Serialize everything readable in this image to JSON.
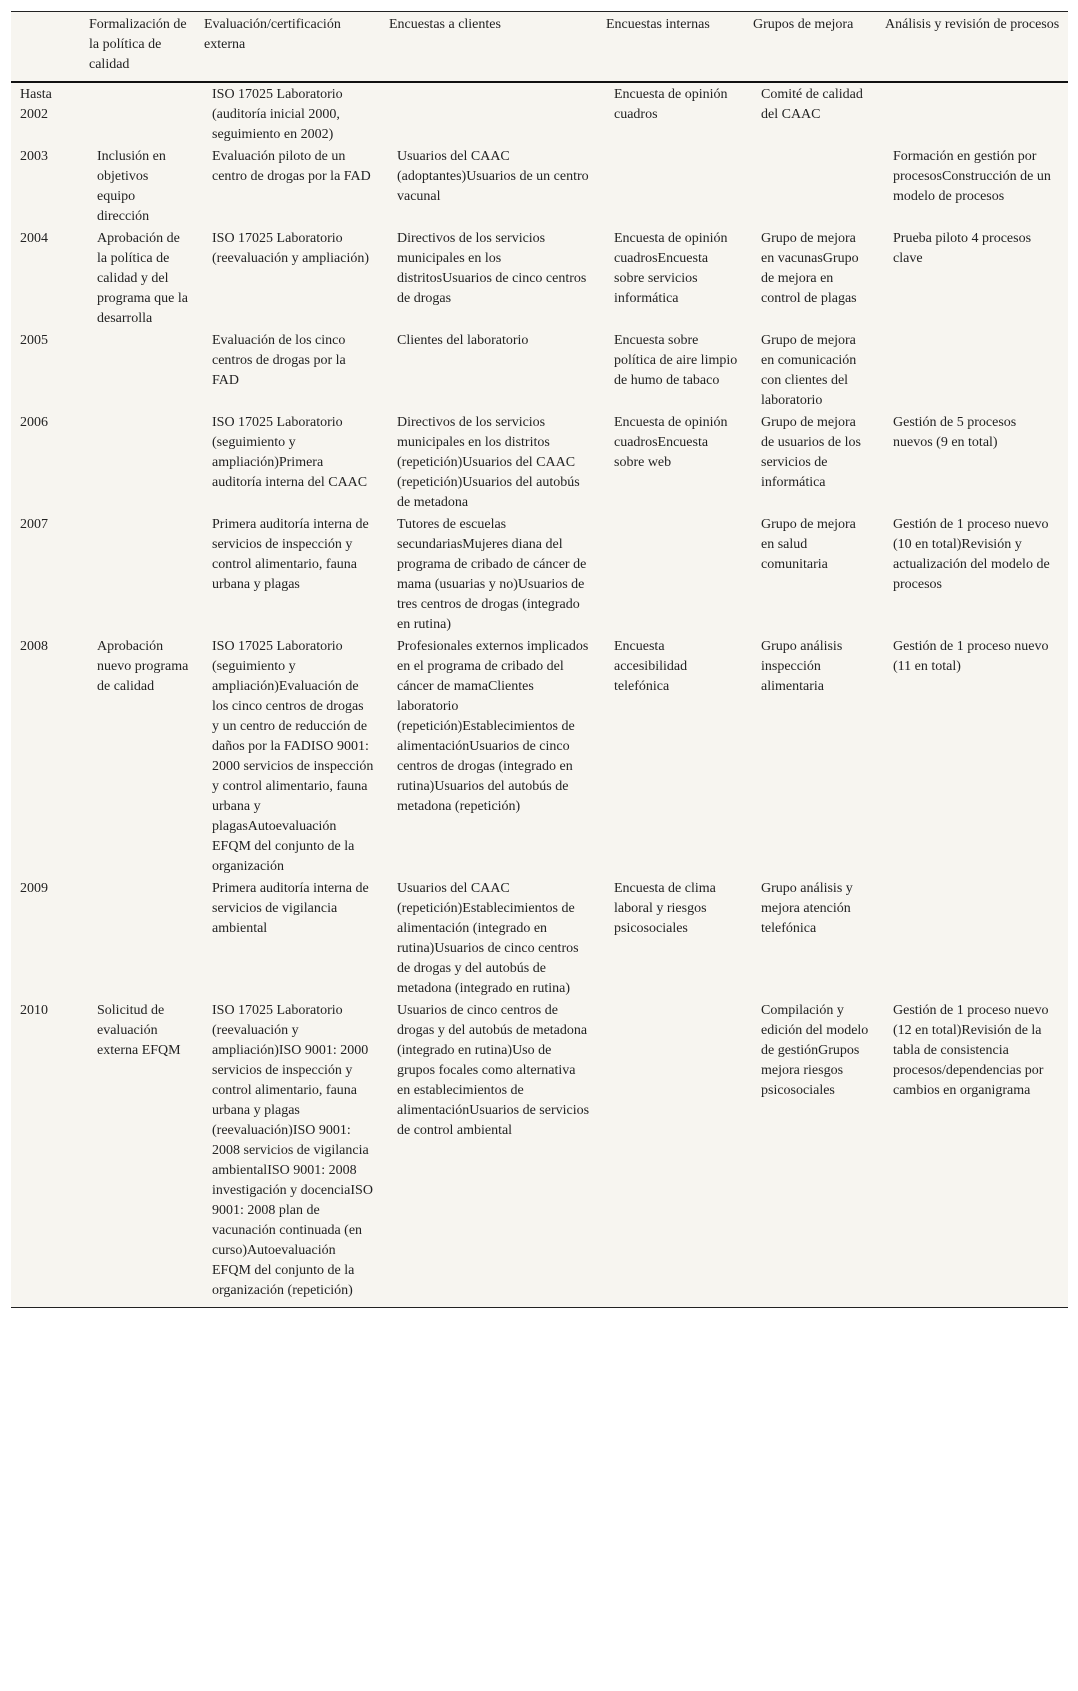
{
  "headers": [
    "",
    "Formalización de la política de calidad",
    "Evaluación/certificación externa",
    "Encuestas a clientes",
    "Encuestas internas",
    "Grupos de mejora",
    "Análisis y revisión de procesos"
  ],
  "rows": [
    [
      "Hasta 2002",
      "",
      "ISO 17025 Laboratorio (auditoría inicial 2000, seguimiento en 2002)",
      "",
      "Encuesta de opinión cuadros",
      "Comité de calidad del CAAC",
      ""
    ],
    [
      "2003",
      "Inclusión en objetivos equipo dirección",
      "Evaluación piloto de un centro de drogas por la FAD",
      "Usuarios del CAAC (adoptantes)Usuarios de un centro vacunal",
      "",
      "",
      "Formación en gestión por procesosConstrucción de un modelo de procesos"
    ],
    [
      "2004",
      "Aprobación de la política de calidad y del programa que la desarrolla",
      "ISO 17025 Laboratorio (reevaluación y ampliación)",
      "Directivos de los servicios municipales en los distritosUsuarios de cinco centros de drogas",
      "Encuesta de opinión cuadrosEncuesta sobre servicios informática",
      "Grupo de mejora en vacunasGrupo de mejora en control de plagas",
      "Prueba piloto 4 procesos clave"
    ],
    [
      "2005",
      "",
      "Evaluación de los cinco centros de drogas por la FAD",
      "Clientes del laboratorio",
      "Encuesta sobre política de aire limpio de humo de tabaco",
      "Grupo de mejora en comunicación con clientes del laboratorio",
      ""
    ],
    [
      "2006",
      "",
      "ISO 17025 Laboratorio (seguimiento y ampliación)Primera auditoría interna del CAAC",
      "Directivos de los servicios municipales en los distritos (repetición)Usuarios del CAAC (repetición)Usuarios del autobús de metadona",
      "Encuesta de opinión cuadrosEncuesta sobre web",
      "Grupo de mejora de usuarios de los servicios de informática",
      "Gestión de 5 procesos nuevos (9 en total)"
    ],
    [
      "2007",
      "",
      "Primera auditoría interna de servicios de inspección y control alimentario, fauna urbana y plagas",
      "Tutores de escuelas secundariasMujeres diana del programa de cribado de cáncer de mama (usuarias y no)Usuarios de tres centros de drogas (integrado en rutina)",
      "",
      "Grupo de mejora en salud comunitaria",
      "Gestión de 1 proceso nuevo (10 en total)Revisión y actualización del modelo de procesos"
    ],
    [
      "2008",
      "Aprobación nuevo programa de calidad",
      "ISO 17025 Laboratorio (seguimiento y ampliación)Evaluación de los cinco centros de drogas y un centro de reducción de daños por la FADISO 9001: 2000 servicios de inspección y control alimentario, fauna urbana y plagasAutoevaluación EFQM del conjunto de la organización",
      "Profesionales externos implicados en el programa de cribado del cáncer de mamaClientes laboratorio (repetición)Establecimientos de alimentaciónUsuarios de cinco centros de drogas (integrado en rutina)Usuarios del autobús de metadona (repetición)",
      "Encuesta accesibilidad telefónica",
      "Grupo análisis inspección alimentaria",
      "Gestión de 1 proceso nuevo (11 en total)"
    ],
    [
      "2009",
      "",
      "Primera auditoría interna de servicios de vigilancia ambiental",
      "Usuarios del CAAC (repetición)Establecimientos de alimentación (integrado en rutina)Usuarios de cinco centros de drogas y del autobús de metadona (integrado en rutina)",
      "Encuesta de clima laboral y riesgos psicosociales",
      "Grupo análisis y mejora atención telefónica",
      ""
    ],
    [
      "2010",
      "Solicitud de evaluación externa EFQM",
      "ISO 17025 Laboratorio (reevaluación y ampliación)ISO 9001: 2000 servicios de inspección y control alimentario, fauna urbana y plagas (reevaluación)ISO 9001: 2008 servicios de vigilancia ambientalISO 9001: 2008 investigación y docenciaISO 9001: 2008 plan de vacunación continuada (en curso)Autoevaluación EFQM del conjunto de la organización (repetición)",
      "Usuarios de cinco centros de drogas y del autobús de metadona (integrado en rutina)Uso de grupos focales como alternativa en establecimientos de alimentaciónUsuarios de servicios de control ambiental",
      "",
      "Compilación y edición del modelo de gestiónGrupos mejora riesgos psicosociales",
      "Gestión de 1 proceso nuevo (12 en total)Revisión de la tabla de consistencia procesos/dependencias por cambios en organigrama"
    ]
  ]
}
